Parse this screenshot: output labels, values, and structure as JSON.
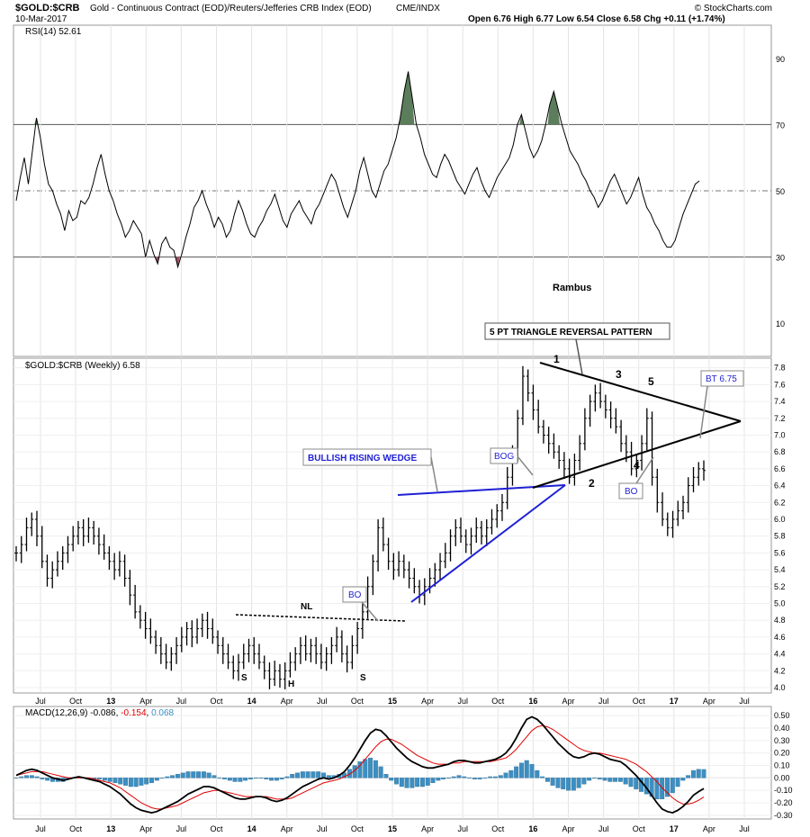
{
  "header": {
    "symbol": "$GOLD:$CRB",
    "description": "Gold - Continuous Contract (EOD)/Reuters/Jefferies CRB Index (EOD)",
    "exchange": "CME/INDX",
    "date": "10-Mar-2017",
    "ohlc": "Open 6.76  High 6.77  Low 6.54  Close 6.58  Chg +0.11 (+1.74%)",
    "brand": "© StockCharts.com"
  },
  "chart_data": [
    {
      "type": "line",
      "name": "rsi",
      "legend": "RSI(14) 52.61",
      "ylim": [
        0,
        100
      ],
      "yticks": [
        10,
        30,
        50,
        70,
        90
      ],
      "ref_lines": [
        30,
        50,
        70
      ],
      "annotation": "Rambus",
      "values": [
        47,
        54,
        60,
        52,
        62,
        72,
        66,
        58,
        52,
        50,
        46,
        43,
        38,
        44,
        41,
        42,
        47,
        46,
        48,
        52,
        57,
        61,
        55,
        50,
        47,
        43,
        40,
        36,
        38,
        41,
        39,
        37,
        30,
        35,
        31,
        28,
        34,
        36,
        33,
        32,
        27,
        31,
        36,
        40,
        45,
        47,
        50,
        46,
        43,
        39,
        42,
        40,
        36,
        38,
        43,
        47,
        44,
        40,
        37,
        36,
        39,
        41,
        44,
        46,
        49,
        45,
        41,
        39,
        43,
        45,
        47,
        44,
        42,
        40,
        44,
        46,
        49,
        52,
        55,
        53,
        49,
        45,
        42,
        46,
        50,
        56,
        60,
        55,
        50,
        48,
        52,
        56,
        58,
        62,
        66,
        72,
        80,
        86,
        78,
        70,
        66,
        61,
        58,
        55,
        54,
        58,
        61,
        59,
        56,
        53,
        51,
        49,
        52,
        55,
        57,
        53,
        50,
        48,
        51,
        54,
        56,
        58,
        60,
        64,
        70,
        73,
        68,
        63,
        60,
        62,
        65,
        70,
        76,
        80,
        75,
        70,
        66,
        62,
        60,
        58,
        55,
        53,
        50,
        48,
        45,
        47,
        50,
        53,
        55,
        52,
        49,
        46,
        48,
        51,
        54,
        49,
        45,
        43,
        40,
        38,
        35,
        33,
        33,
        35,
        39,
        43,
        46,
        49,
        52,
        53
      ]
    },
    {
      "type": "ohlc",
      "name": "price",
      "legend": "$GOLD:$CRB (Weekly) 6.58",
      "ylim": [
        4.0,
        7.85
      ],
      "yticks": [
        4.0,
        4.2,
        4.4,
        4.6,
        4.8,
        5.0,
        5.2,
        5.4,
        5.6,
        5.8,
        6.0,
        6.2,
        6.4,
        6.6,
        6.8,
        7.0,
        7.2,
        7.4,
        7.6,
        7.8
      ],
      "closes": [
        5.6,
        5.7,
        5.9,
        6.0,
        5.8,
        5.5,
        5.3,
        5.4,
        5.5,
        5.6,
        5.7,
        5.8,
        5.9,
        5.8,
        5.9,
        5.8,
        5.7,
        5.6,
        5.5,
        5.4,
        5.5,
        5.3,
        5.1,
        4.9,
        4.8,
        4.7,
        4.6,
        4.5,
        4.4,
        4.3,
        4.4,
        4.5,
        4.6,
        4.7,
        4.6,
        4.7,
        4.8,
        4.7,
        4.6,
        4.5,
        4.4,
        4.3,
        4.2,
        4.3,
        4.4,
        4.5,
        4.4,
        4.3,
        4.2,
        4.1,
        4.2,
        4.1,
        4.2,
        4.3,
        4.4,
        4.5,
        4.4,
        4.5,
        4.4,
        4.3,
        4.4,
        4.5,
        4.6,
        4.4,
        4.3,
        4.5,
        4.7,
        4.9,
        5.2,
        5.5,
        5.9,
        5.7,
        5.5,
        5.4,
        5.5,
        5.4,
        5.3,
        5.2,
        5.1,
        5.2,
        5.3,
        5.4,
        5.5,
        5.6,
        5.8,
        5.9,
        5.8,
        5.7,
        5.8,
        5.9,
        5.8,
        5.9,
        6.0,
        6.1,
        6.2,
        6.5,
        6.8,
        7.2,
        7.7,
        7.5,
        7.3,
        7.1,
        7.0,
        6.9,
        6.8,
        6.7,
        6.6,
        6.5,
        6.7,
        6.9,
        7.2,
        7.4,
        7.5,
        7.4,
        7.3,
        7.2,
        7.1,
        6.9,
        6.8,
        6.6,
        6.7,
        6.9,
        7.2,
        6.5,
        6.2,
        6.0,
        5.9,
        6.0,
        6.1,
        6.2,
        6.4,
        6.5,
        6.6,
        6.58
      ]
    },
    {
      "type": "line",
      "name": "macd",
      "legend_prefix": "MACD(12,26,9)",
      "legend_macd": "-0.086",
      "legend_signal": "-0.154",
      "legend_hist": "0.068",
      "ylim": [
        -0.33,
        0.53
      ],
      "yticks": [
        0.5,
        0.4,
        0.3,
        0.2,
        0.1,
        0.0,
        -0.1,
        -0.2,
        -0.3
      ],
      "colors": {
        "macd": "#000000",
        "signal": "#e00000",
        "hist": "#3d8fc2"
      },
      "macd": [
        0.02,
        0.04,
        0.06,
        0.07,
        0.06,
        0.04,
        0.02,
        0.0,
        -0.01,
        -0.02,
        -0.01,
        0.0,
        0.01,
        0.0,
        -0.01,
        -0.02,
        -0.03,
        -0.05,
        -0.07,
        -0.1,
        -0.13,
        -0.17,
        -0.21,
        -0.24,
        -0.26,
        -0.27,
        -0.28,
        -0.27,
        -0.25,
        -0.23,
        -0.21,
        -0.19,
        -0.16,
        -0.13,
        -0.11,
        -0.09,
        -0.07,
        -0.07,
        -0.08,
        -0.1,
        -0.12,
        -0.14,
        -0.16,
        -0.17,
        -0.17,
        -0.16,
        -0.15,
        -0.15,
        -0.16,
        -0.18,
        -0.19,
        -0.18,
        -0.16,
        -0.13,
        -0.1,
        -0.07,
        -0.05,
        -0.03,
        -0.01,
        0.0,
        -0.01,
        0.0,
        0.02,
        0.05,
        0.1,
        0.16,
        0.23,
        0.3,
        0.36,
        0.39,
        0.38,
        0.34,
        0.29,
        0.24,
        0.2,
        0.16,
        0.13,
        0.11,
        0.09,
        0.08,
        0.08,
        0.09,
        0.1,
        0.11,
        0.13,
        0.14,
        0.14,
        0.13,
        0.12,
        0.12,
        0.13,
        0.14,
        0.15,
        0.17,
        0.2,
        0.25,
        0.32,
        0.4,
        0.47,
        0.49,
        0.47,
        0.43,
        0.38,
        0.33,
        0.28,
        0.24,
        0.2,
        0.17,
        0.16,
        0.17,
        0.19,
        0.2,
        0.19,
        0.17,
        0.15,
        0.14,
        0.13,
        0.1,
        0.06,
        0.02,
        -0.03,
        -0.08,
        -0.14,
        -0.2,
        -0.25,
        -0.27,
        -0.28,
        -0.26,
        -0.23,
        -0.19,
        -0.14,
        -0.11,
        -0.086
      ],
      "signal": [
        0.02,
        0.03,
        0.04,
        0.05,
        0.05,
        0.05,
        0.04,
        0.03,
        0.02,
        0.01,
        0.0,
        0.0,
        0.0,
        0.0,
        0.0,
        -0.01,
        -0.02,
        -0.03,
        -0.04,
        -0.06,
        -0.08,
        -0.11,
        -0.14,
        -0.17,
        -0.2,
        -0.22,
        -0.24,
        -0.25,
        -0.25,
        -0.24,
        -0.23,
        -0.22,
        -0.2,
        -0.18,
        -0.16,
        -0.14,
        -0.12,
        -0.11,
        -0.1,
        -0.1,
        -0.11,
        -0.12,
        -0.13,
        -0.14,
        -0.15,
        -0.15,
        -0.15,
        -0.15,
        -0.15,
        -0.16,
        -0.17,
        -0.17,
        -0.17,
        -0.16,
        -0.14,
        -0.12,
        -0.1,
        -0.08,
        -0.06,
        -0.04,
        -0.03,
        -0.02,
        -0.01,
        0.01,
        0.03,
        0.06,
        0.1,
        0.15,
        0.2,
        0.25,
        0.29,
        0.31,
        0.31,
        0.29,
        0.27,
        0.24,
        0.21,
        0.18,
        0.16,
        0.14,
        0.12,
        0.11,
        0.11,
        0.11,
        0.12,
        0.12,
        0.13,
        0.13,
        0.13,
        0.13,
        0.13,
        0.13,
        0.14,
        0.15,
        0.16,
        0.19,
        0.23,
        0.28,
        0.33,
        0.38,
        0.41,
        0.42,
        0.41,
        0.39,
        0.36,
        0.33,
        0.3,
        0.27,
        0.24,
        0.22,
        0.21,
        0.2,
        0.2,
        0.19,
        0.18,
        0.17,
        0.16,
        0.15,
        0.13,
        0.11,
        0.08,
        0.05,
        0.01,
        -0.03,
        -0.08,
        -0.12,
        -0.16,
        -0.19,
        -0.21,
        -0.21,
        -0.2,
        -0.18,
        -0.154
      ]
    }
  ],
  "x_axis_labels": [
    "Jul",
    "Oct",
    "13",
    "Apr",
    "Jul",
    "Oct",
    "14",
    "Apr",
    "Jul",
    "Oct",
    "15",
    "Apr",
    "Jul",
    "Oct",
    "16",
    "Apr",
    "Jul",
    "Oct",
    "17",
    "Apr",
    "Jul"
  ],
  "annotations": {
    "nl": "NL",
    "s1": "S",
    "h": "H",
    "s2": "S",
    "bo1": "BO",
    "wedge": "BULLISH RISING WEDGE",
    "bog": "BOG",
    "triangle": "5 PT TRIANGLE REVERSAL PATTERN",
    "p1": "1",
    "p2": "2",
    "p3": "3",
    "p4": "4",
    "p5": "5",
    "bo2": "BO",
    "bt": "BT 6.75"
  }
}
